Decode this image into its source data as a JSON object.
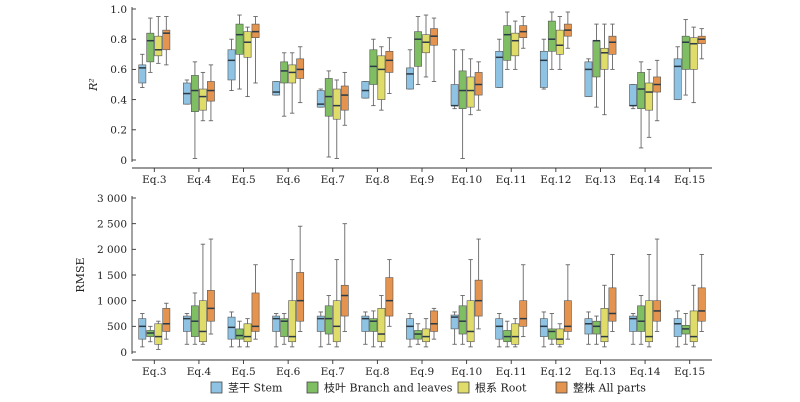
{
  "chart_data": [
    {
      "type": "boxplot",
      "ylabel": "R²",
      "ylim": [
        0,
        1.0
      ],
      "yticks": [
        0,
        0.2,
        0.4,
        0.6,
        0.8,
        1.0
      ],
      "ytick_labels": [
        "0",
        "0.2",
        "0.4",
        "0.6",
        "0.8",
        "1.0"
      ],
      "categories": [
        "Eq.3",
        "Eq.4",
        "Eq.5",
        "Eq.6",
        "Eq.7",
        "Eq.8",
        "Eq.9",
        "Eq.10",
        "Eq.11",
        "Eq.12",
        "Eq.13",
        "Eq.14",
        "Eq.15"
      ],
      "series": [
        {
          "name": "茎干 Stem",
          "boxes": [
            {
              "min": 0.48,
              "q1": 0.51,
              "median": 0.61,
              "q3": 0.63,
              "max": 0.7
            },
            {
              "min": 0.37,
              "q1": 0.37,
              "median": 0.44,
              "q3": 0.51,
              "max": 0.53
            },
            {
              "min": 0.46,
              "q1": 0.53,
              "median": 0.66,
              "q3": 0.73,
              "max": 0.8
            },
            {
              "min": 0.43,
              "q1": 0.43,
              "median": 0.45,
              "q3": 0.52,
              "max": 0.52
            },
            {
              "min": 0.35,
              "q1": 0.35,
              "median": 0.37,
              "q3": 0.46,
              "max": 0.47
            },
            {
              "min": 0.41,
              "q1": 0.41,
              "median": 0.46,
              "q3": 0.52,
              "max": 0.52
            },
            {
              "min": 0.47,
              "q1": 0.47,
              "median": 0.57,
              "q3": 0.61,
              "max": 0.73
            },
            {
              "min": 0.34,
              "q1": 0.36,
              "median": 0.36,
              "q3": 0.5,
              "max": 0.73
            },
            {
              "min": 0.48,
              "q1": 0.48,
              "median": 0.68,
              "q3": 0.72,
              "max": 0.8
            },
            {
              "min": 0.47,
              "q1": 0.48,
              "median": 0.66,
              "q3": 0.72,
              "max": 0.8
            },
            {
              "min": 0.42,
              "q1": 0.42,
              "median": 0.6,
              "q3": 0.65,
              "max": 0.67
            },
            {
              "min": 0.34,
              "q1": 0.36,
              "median": 0.36,
              "q3": 0.5,
              "max": 0.5
            },
            {
              "min": 0.4,
              "q1": 0.4,
              "median": 0.62,
              "q3": 0.67,
              "max": 0.75
            }
          ]
        },
        {
          "name": "枝叶 Branch and leaves",
          "boxes": [
            {
              "min": 0.58,
              "q1": 0.65,
              "median": 0.79,
              "q3": 0.84,
              "max": 0.94
            },
            {
              "min": 0.01,
              "q1": 0.32,
              "median": 0.46,
              "q3": 0.56,
              "max": 0.65
            },
            {
              "min": 0.47,
              "q1": 0.7,
              "median": 0.83,
              "q3": 0.9,
              "max": 0.96
            },
            {
              "min": 0.29,
              "q1": 0.51,
              "median": 0.59,
              "q3": 0.65,
              "max": 0.71
            },
            {
              "min": 0.02,
              "q1": 0.29,
              "median": 0.42,
              "q3": 0.54,
              "max": 0.59
            },
            {
              "min": 0.36,
              "q1": 0.5,
              "median": 0.62,
              "q3": 0.73,
              "max": 0.8
            },
            {
              "min": 0.5,
              "q1": 0.62,
              "median": 0.8,
              "q3": 0.85,
              "max": 0.95
            },
            {
              "min": 0.01,
              "q1": 0.34,
              "median": 0.46,
              "q3": 0.59,
              "max": 0.73
            },
            {
              "min": 0.6,
              "q1": 0.66,
              "median": 0.83,
              "q3": 0.89,
              "max": 0.98
            },
            {
              "min": 0.6,
              "q1": 0.72,
              "median": 0.8,
              "q3": 0.92,
              "max": 0.98
            },
            {
              "min": 0.35,
              "q1": 0.55,
              "median": 0.79,
              "q3": 0.79,
              "max": 0.9
            },
            {
              "min": 0.08,
              "q1": 0.34,
              "median": 0.47,
              "q3": 0.58,
              "max": 0.65
            },
            {
              "min": 0.43,
              "q1": 0.6,
              "median": 0.78,
              "q3": 0.82,
              "max": 0.93
            }
          ]
        },
        {
          "name": "根系 Root",
          "boxes": [
            {
              "min": 0.64,
              "q1": 0.69,
              "median": 0.73,
              "q3": 0.82,
              "max": 0.95
            },
            {
              "min": 0.26,
              "q1": 0.33,
              "median": 0.42,
              "q3": 0.47,
              "max": 0.58
            },
            {
              "min": 0.42,
              "q1": 0.68,
              "median": 0.78,
              "q3": 0.85,
              "max": 0.88
            },
            {
              "min": 0.31,
              "q1": 0.51,
              "median": 0.58,
              "q3": 0.63,
              "max": 0.71
            },
            {
              "min": 0.01,
              "q1": 0.27,
              "median": 0.36,
              "q3": 0.47,
              "max": 0.53
            },
            {
              "min": 0.33,
              "q1": 0.4,
              "median": 0.6,
              "q3": 0.69,
              "max": 0.75
            },
            {
              "min": 0.55,
              "q1": 0.71,
              "median": 0.78,
              "q3": 0.83,
              "max": 0.96
            },
            {
              "min": 0.3,
              "q1": 0.35,
              "median": 0.46,
              "q3": 0.55,
              "max": 0.67
            },
            {
              "min": 0.6,
              "q1": 0.69,
              "median": 0.79,
              "q3": 0.84,
              "max": 0.92
            },
            {
              "min": 0.6,
              "q1": 0.7,
              "median": 0.76,
              "q3": 0.86,
              "max": 0.95
            },
            {
              "min": 0.3,
              "q1": 0.6,
              "median": 0.71,
              "q3": 0.74,
              "max": 0.9
            },
            {
              "min": 0.15,
              "q1": 0.33,
              "median": 0.45,
              "q3": 0.51,
              "max": 0.6
            },
            {
              "min": 0.38,
              "q1": 0.6,
              "median": 0.77,
              "q3": 0.81,
              "max": 0.88
            }
          ]
        },
        {
          "name": "整株 All parts",
          "boxes": [
            {
              "min": 0.63,
              "q1": 0.73,
              "median": 0.84,
              "q3": 0.86,
              "max": 0.95
            },
            {
              "min": 0.26,
              "q1": 0.39,
              "median": 0.46,
              "q3": 0.52,
              "max": 0.63
            },
            {
              "min": 0.51,
              "q1": 0.81,
              "median": 0.85,
              "q3": 0.9,
              "max": 0.95
            },
            {
              "min": 0.38,
              "q1": 0.54,
              "median": 0.6,
              "q3": 0.67,
              "max": 0.75
            },
            {
              "min": 0.23,
              "q1": 0.33,
              "median": 0.43,
              "q3": 0.49,
              "max": 0.58
            },
            {
              "min": 0.44,
              "q1": 0.58,
              "median": 0.66,
              "q3": 0.72,
              "max": 0.81
            },
            {
              "min": 0.52,
              "q1": 0.76,
              "median": 0.82,
              "q3": 0.87,
              "max": 0.94
            },
            {
              "min": 0.33,
              "q1": 0.43,
              "median": 0.5,
              "q3": 0.58,
              "max": 0.65
            },
            {
              "min": 0.74,
              "q1": 0.81,
              "median": 0.85,
              "q3": 0.89,
              "max": 0.95
            },
            {
              "min": 0.74,
              "q1": 0.82,
              "median": 0.86,
              "q3": 0.9,
              "max": 0.98
            },
            {
              "min": 0.6,
              "q1": 0.7,
              "median": 0.78,
              "q3": 0.82,
              "max": 0.9
            },
            {
              "min": 0.26,
              "q1": 0.45,
              "median": 0.5,
              "q3": 0.55,
              "max": 0.66
            },
            {
              "min": 0.67,
              "q1": 0.77,
              "median": 0.8,
              "q3": 0.82,
              "max": 0.87
            }
          ]
        }
      ]
    },
    {
      "type": "boxplot",
      "ylabel": "RMSE",
      "ylim": [
        0,
        3000
      ],
      "yticks": [
        0,
        500,
        1000,
        1500,
        2000,
        2500,
        3000
      ],
      "ytick_labels": [
        "0",
        "500",
        "1 000",
        "1 500",
        "2 000",
        "2 500",
        "3 000"
      ],
      "categories": [
        "Eq.3",
        "Eq.4",
        "Eq.5",
        "Eq.6",
        "Eq.7",
        "Eq.8",
        "Eq.9",
        "Eq.10",
        "Eq.11",
        "Eq.12",
        "Eq.13",
        "Eq.14",
        "Eq.15"
      ],
      "series": [
        {
          "name": "茎干 Stem",
          "boxes": [
            {
              "min": 100,
              "q1": 250,
              "median": 500,
              "q3": 650,
              "max": 750
            },
            {
              "min": 150,
              "q1": 400,
              "median": 650,
              "q3": 700,
              "max": 750
            },
            {
              "min": 100,
              "q1": 250,
              "median": 480,
              "q3": 680,
              "max": 780
            },
            {
              "min": 100,
              "q1": 400,
              "median": 650,
              "q3": 700,
              "max": 750
            },
            {
              "min": 100,
              "q1": 400,
              "median": 650,
              "q3": 700,
              "max": 780
            },
            {
              "min": 150,
              "q1": 400,
              "median": 650,
              "q3": 700,
              "max": 780
            },
            {
              "min": 100,
              "q1": 250,
              "median": 500,
              "q3": 650,
              "max": 750
            },
            {
              "min": 150,
              "q1": 450,
              "median": 680,
              "q3": 720,
              "max": 780
            },
            {
              "min": 100,
              "q1": 250,
              "median": 500,
              "q3": 650,
              "max": 750
            },
            {
              "min": 100,
              "q1": 300,
              "median": 500,
              "q3": 650,
              "max": 780
            },
            {
              "min": 150,
              "q1": 350,
              "median": 550,
              "q3": 650,
              "max": 780
            },
            {
              "min": 150,
              "q1": 400,
              "median": 650,
              "q3": 700,
              "max": 750
            },
            {
              "min": 100,
              "q1": 300,
              "median": 550,
              "q3": 650,
              "max": 800
            }
          ]
        },
        {
          "name": "枝叶 Branch and leaves",
          "boxes": [
            {
              "min": 200,
              "q1": 300,
              "median": 370,
              "q3": 420,
              "max": 500
            },
            {
              "min": 150,
              "q1": 300,
              "median": 600,
              "q3": 900,
              "max": 1150
            },
            {
              "min": 100,
              "q1": 250,
              "median": 320,
              "q3": 450,
              "max": 600
            },
            {
              "min": 150,
              "q1": 300,
              "median": 600,
              "q3": 650,
              "max": 750
            },
            {
              "min": 150,
              "q1": 350,
              "median": 650,
              "q3": 900,
              "max": 1100
            },
            {
              "min": 100,
              "q1": 400,
              "median": 600,
              "q3": 650,
              "max": 800
            },
            {
              "min": 150,
              "q1": 250,
              "median": 350,
              "q3": 420,
              "max": 550
            },
            {
              "min": 150,
              "q1": 350,
              "median": 600,
              "q3": 900,
              "max": 1100
            },
            {
              "min": 100,
              "q1": 200,
              "median": 300,
              "q3": 420,
              "max": 600
            },
            {
              "min": 150,
              "q1": 250,
              "median": 400,
              "q3": 450,
              "max": 750
            },
            {
              "min": 150,
              "q1": 350,
              "median": 500,
              "q3": 600,
              "max": 700
            },
            {
              "min": 150,
              "q1": 400,
              "median": 600,
              "q3": 900,
              "max": 1100
            },
            {
              "min": 150,
              "q1": 350,
              "median": 450,
              "q3": 520,
              "max": 750
            }
          ]
        },
        {
          "name": "根系 Root",
          "boxes": [
            {
              "min": 50,
              "q1": 150,
              "median": 300,
              "q3": 550,
              "max": 600
            },
            {
              "min": 150,
              "q1": 200,
              "median": 400,
              "q3": 1000,
              "max": 2100
            },
            {
              "min": 100,
              "q1": 200,
              "median": 300,
              "q3": 550,
              "max": 650
            },
            {
              "min": 100,
              "q1": 200,
              "median": 300,
              "q3": 1000,
              "max": 1800
            },
            {
              "min": 100,
              "q1": 200,
              "median": 500,
              "q3": 1000,
              "max": 1800
            },
            {
              "min": 100,
              "q1": 200,
              "median": 350,
              "q3": 850,
              "max": 1100
            },
            {
              "min": 100,
              "q1": 200,
              "median": 300,
              "q3": 450,
              "max": 650
            },
            {
              "min": 100,
              "q1": 200,
              "median": 400,
              "q3": 1000,
              "max": 1800
            },
            {
              "min": 100,
              "q1": 150,
              "median": 300,
              "q3": 550,
              "max": 650
            },
            {
              "min": 100,
              "q1": 150,
              "median": 250,
              "q3": 450,
              "max": 550
            },
            {
              "min": 100,
              "q1": 200,
              "median": 300,
              "q3": 850,
              "max": 1300
            },
            {
              "min": 100,
              "q1": 200,
              "median": 300,
              "q3": 1000,
              "max": 1900
            },
            {
              "min": 100,
              "q1": 200,
              "median": 300,
              "q3": 800,
              "max": 1300
            }
          ]
        },
        {
          "name": "整株 All parts",
          "boxes": [
            {
              "min": 250,
              "q1": 400,
              "median": 550,
              "q3": 850,
              "max": 950
            },
            {
              "min": 350,
              "q1": 600,
              "median": 850,
              "q3": 1200,
              "max": 2200
            },
            {
              "min": 250,
              "q1": 400,
              "median": 500,
              "q3": 1150,
              "max": 1700
            },
            {
              "min": 400,
              "q1": 600,
              "median": 1000,
              "q3": 1550,
              "max": 2450
            },
            {
              "min": 400,
              "q1": 700,
              "median": 1100,
              "q3": 1300,
              "max": 2500
            },
            {
              "min": 500,
              "q1": 700,
              "median": 1000,
              "q3": 1450,
              "max": 1800
            },
            {
              "min": 250,
              "q1": 400,
              "median": 550,
              "q3": 800,
              "max": 850
            },
            {
              "min": 450,
              "q1": 700,
              "median": 1000,
              "q3": 1400,
              "max": 2200
            },
            {
              "min": 300,
              "q1": 500,
              "median": 650,
              "q3": 1000,
              "max": 1700
            },
            {
              "min": 250,
              "q1": 400,
              "median": 500,
              "q3": 1000,
              "max": 1700
            },
            {
              "min": 400,
              "q1": 600,
              "median": 750,
              "q3": 1250,
              "max": 1900
            },
            {
              "min": 400,
              "q1": 600,
              "median": 800,
              "q3": 1000,
              "max": 2200
            },
            {
              "min": 400,
              "q1": 600,
              "median": 800,
              "q3": 1250,
              "max": 1900
            }
          ]
        }
      ]
    }
  ],
  "legend": {
    "placement": "bottom-center",
    "items": [
      {
        "label": "茎干 Stem",
        "color": "#8fc3e4"
      },
      {
        "label": "枝叶 Branch and leaves",
        "color": "#7fbe62"
      },
      {
        "label": "根系 Root",
        "color": "#e0dc6a"
      },
      {
        "label": "整株 All parts",
        "color": "#e4944f"
      }
    ]
  },
  "colors": {
    "stem": "#8fc3e4",
    "branch": "#7fbe62",
    "root": "#e0dc6a",
    "all": "#e4944f",
    "median": "#2b3a45",
    "whisker": "#666666"
  }
}
